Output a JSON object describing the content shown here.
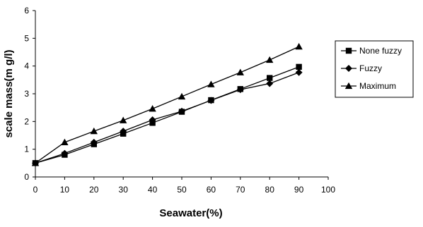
{
  "chart_data": {
    "type": "line",
    "title": "",
    "xlabel": "Seawater(%)",
    "ylabel": "scale mass(m g/l)",
    "xlim": [
      0,
      100
    ],
    "ylim": [
      0,
      6
    ],
    "x_ticks": [
      "0",
      "10",
      "20",
      "30",
      "40",
      "50",
      "60",
      "70",
      "80",
      "90",
      "100"
    ],
    "y_ticks": [
      "0",
      "1",
      "2",
      "3",
      "4",
      "5",
      "6"
    ],
    "grid": false,
    "legend_position": "right",
    "x": [
      0,
      10,
      20,
      30,
      40,
      50,
      60,
      70,
      80,
      90
    ],
    "series": [
      {
        "name": "None fuzzy",
        "marker": "square",
        "values": [
          0.5,
          0.8,
          1.18,
          1.56,
          1.95,
          2.35,
          2.77,
          3.17,
          3.57,
          3.97
        ]
      },
      {
        "name": "Fuzzy",
        "marker": "diamond",
        "values": [
          0.5,
          0.85,
          1.25,
          1.65,
          2.06,
          2.37,
          2.76,
          3.15,
          3.37,
          3.77
        ]
      },
      {
        "name": "Maximum",
        "marker": "triangle",
        "values": [
          0.5,
          1.25,
          1.65,
          2.04,
          2.46,
          2.9,
          3.34,
          3.77,
          4.22,
          4.7
        ]
      }
    ]
  }
}
